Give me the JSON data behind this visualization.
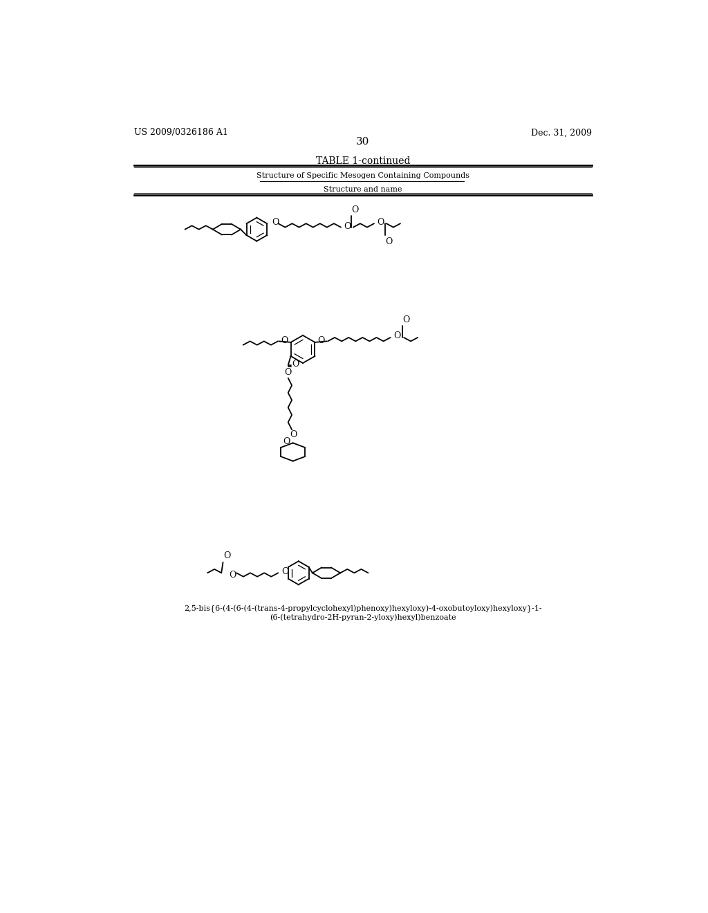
{
  "page_left": "US 2009/0326186 A1",
  "page_right": "Dec. 31, 2009",
  "page_number": "30",
  "table_title": "TABLE 1-continued",
  "table_subtitle": "Structure of Specific Mesogen Containing Compounds",
  "table_col_header": "Structure and name",
  "caption_line1": "2,5-bis{6-(4-(6-(4-(trans-4-propylcyclohexyl)phenoxy)hexyloxy)-4-oxobutoyloxy)hexyloxy}-1-",
  "caption_line2": "(6-(tetrahydro-2H-pyran-2-yloxy)hexyl)benzoate",
  "background_color": "#ffffff",
  "text_color": "#000000",
  "line_color": "#000000"
}
